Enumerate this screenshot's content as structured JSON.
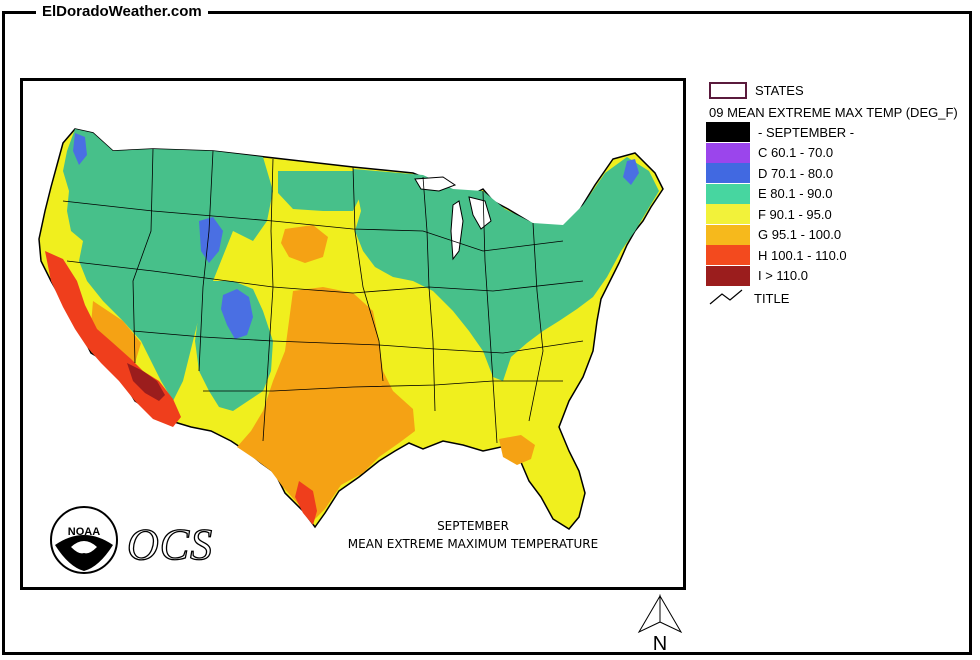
{
  "site": {
    "title": "ElDoradoWeather.com"
  },
  "map": {
    "caption_line1": "SEPTEMBER",
    "caption_line2": "MEAN EXTREME MAXIMUM TEMPERATURE",
    "noaa_label": "NOAA",
    "ocs_label": "OCS"
  },
  "legend": {
    "states_label": "STATES",
    "layer_title": "09 MEAN EXTREME MAX TEMP (DEG_F)",
    "items": [
      {
        "label": "- SEPTEMBER -",
        "color": "#000000"
      },
      {
        "label": "C 60.1 - 70.0",
        "color": "#9b45ec"
      },
      {
        "label": "D 70.1 - 80.0",
        "color": "#4169e1"
      },
      {
        "label": "E 80.1 - 90.0",
        "color": "#47d6a0"
      },
      {
        "label": "F 90.1 - 95.0",
        "color": "#f2f23a"
      },
      {
        "label": "G 95.1 - 100.0",
        "color": "#f6b91c"
      },
      {
        "label": "H 100.1 - 110.0",
        "color": "#f34a1e"
      },
      {
        "label": "I > 110.0",
        "color": "#9b1d1d"
      }
    ],
    "title_label": "TITLE"
  },
  "north_arrow": {
    "label": "N"
  },
  "colors": {
    "green": "#47c08a",
    "yellow": "#f0ef1e",
    "orange": "#f5a214",
    "red": "#ef3e1c",
    "blue": "#4a6fe3"
  }
}
